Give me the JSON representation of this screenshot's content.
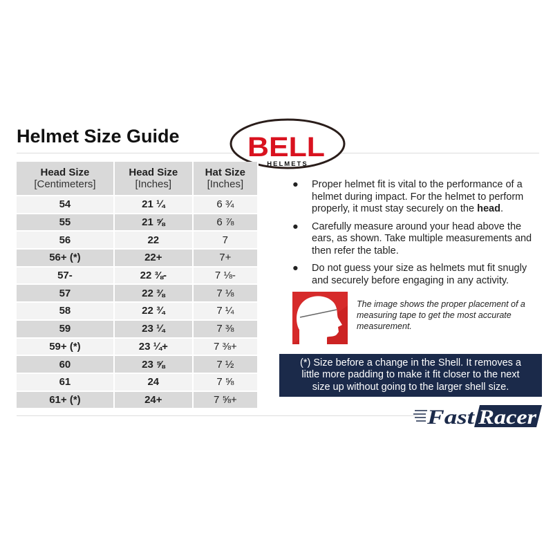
{
  "title": "Helmet Size Guide",
  "brand_logo": "BELL HELMETS",
  "retailer_logo": "FastRacer",
  "table": {
    "headers": [
      {
        "main": "Head Size",
        "sub": "[Centimeters]"
      },
      {
        "main": "Head Size",
        "sub": "[Inches]"
      },
      {
        "main": "Hat Size",
        "sub": "[Inches]"
      }
    ],
    "rows": [
      [
        "54",
        "21 ¼",
        "6 ¾"
      ],
      [
        "55",
        "21 ⅝",
        "6 ⅞"
      ],
      [
        "56",
        "22",
        "7"
      ],
      [
        "56+ (*)",
        "22+",
        "7+"
      ],
      [
        "57-",
        "22 ⅜-",
        "7 ⅛-"
      ],
      [
        "57",
        "22 ⅜",
        "7 ⅛"
      ],
      [
        "58",
        "22 ¾",
        "7 ¼"
      ],
      [
        "59",
        "23 ¼",
        "7 ⅜"
      ],
      [
        "59+ (*)",
        "23 ¼+",
        "7 ⅜+"
      ],
      [
        "60",
        "23 ⅝",
        "7 ½"
      ],
      [
        "61",
        "24",
        "7 ⅝"
      ],
      [
        "61+ (*)",
        "24+",
        "7 ⅝+"
      ]
    ]
  },
  "bullets": [
    {
      "text": "Proper helmet fit is vital to the performance of a helmet during impact. For the helmet to perform properly, it must stay securely on the ",
      "bold": "head",
      "end": "."
    },
    {
      "text": "Carefully measure around your head above the ears, as shown. Take multiple measurements and then refer the table.",
      "bold": "",
      "end": ""
    },
    {
      "text": "Do not guess your size as helmets mut fit snugly and securely before engaging in any activity.",
      "bold": "",
      "end": ""
    }
  ],
  "caption": "The image shows the proper placement of a measuring tape to get the most accurate measurement.",
  "note": "(*) Size before a change in the Shell. It removes a little more padding to make it fit closer to the next size up without going to the larger shell size.",
  "colors": {
    "navy": "#1b2a4a",
    "bell_red": "#d9121f",
    "image_red": "#d62a2a"
  }
}
